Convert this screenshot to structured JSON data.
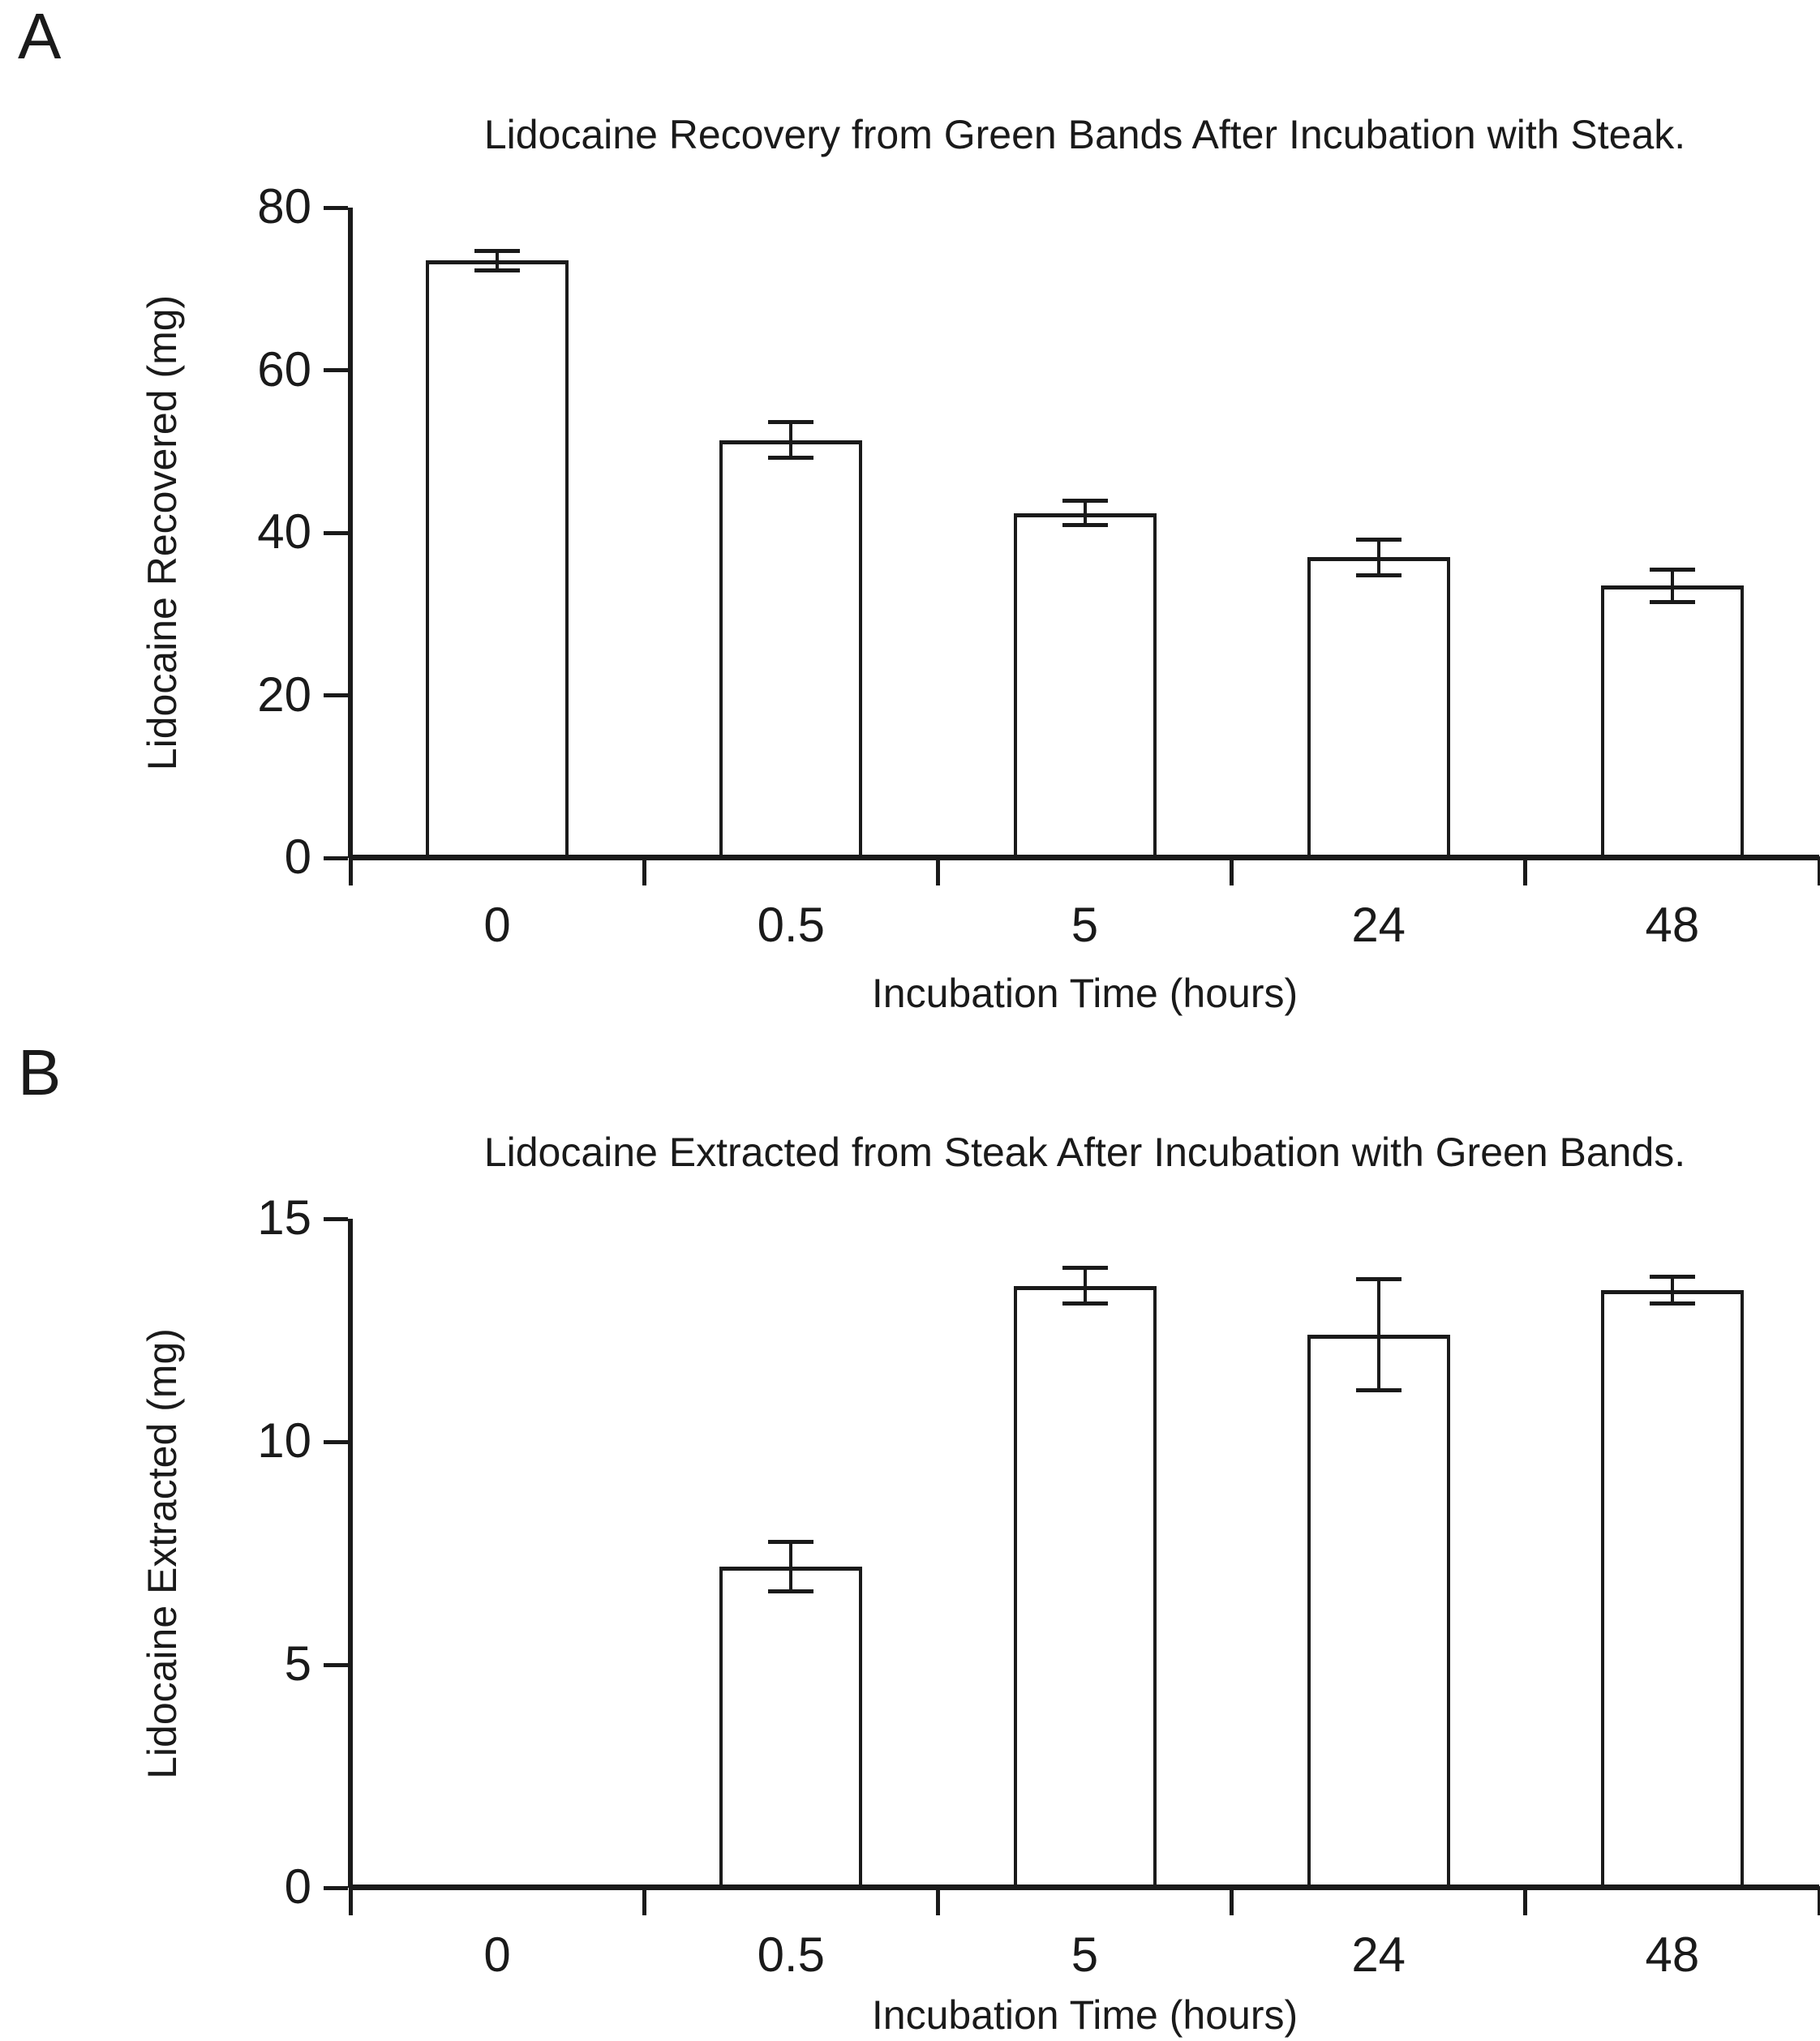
{
  "background": "#ffffff",
  "colors": {
    "line": "#1a1a1a",
    "bar_fill": "#ffffff",
    "text": "#1a1a1a"
  },
  "chart_data": [
    {
      "type": "bar",
      "panel_label": "A",
      "title": "Lidocaine Recovery from Green Bands After Incubation with Steak.",
      "xlabel": "Incubation Time (hours)",
      "ylabel": "Lidocaine Recovered (mg)",
      "categories": [
        "0",
        "0.5",
        "5",
        "24",
        "48"
      ],
      "values": [
        73.5,
        51.4,
        42.4,
        37.0,
        33.5
      ],
      "errors": [
        1.2,
        2.2,
        1.5,
        2.2,
        2.0
      ],
      "yticks": [
        0,
        20,
        40,
        60,
        80
      ],
      "ylim": [
        0,
        80
      ],
      "grid": false,
      "legend": "none",
      "bar_style": "white fill, black outline, error bars"
    },
    {
      "type": "bar",
      "panel_label": "B",
      "title": "Lidocaine Extracted from Steak After Incubation with Green Bands.",
      "xlabel": "Incubation Time (hours)",
      "ylabel": "Lidocaine Extracted (mg)",
      "categories": [
        "0",
        "0.5",
        "5",
        "24",
        "48"
      ],
      "values": [
        0,
        7.2,
        13.5,
        12.4,
        13.4
      ],
      "errors": [
        0,
        0.55,
        0.4,
        1.25,
        0.3
      ],
      "yticks": [
        0,
        5,
        10,
        15
      ],
      "ylim": [
        0,
        15
      ],
      "grid": false,
      "legend": "none",
      "bar_style": "white fill, black outline, error bars"
    }
  ]
}
